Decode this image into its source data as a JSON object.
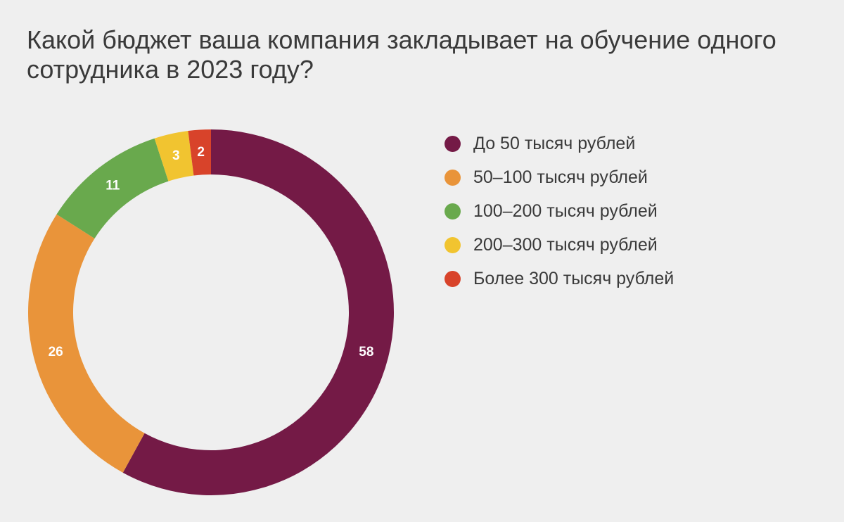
{
  "chart_data": {
    "type": "pie",
    "style": "donut",
    "title": "Какой бюджет ваша компания закладывает на обучение одного сотрудника в 2023 году?",
    "categories": [
      "До 50 тысяч рублей",
      "50–100 тысяч рублей",
      "100–200 тысяч рублей",
      "200–300 тысяч рублей",
      "Более 300 тысяч рублей"
    ],
    "values": [
      58,
      26,
      11,
      3,
      2
    ],
    "data_labels": [
      "58",
      "26",
      "11",
      "3",
      "2"
    ],
    "colors": [
      "#741a46",
      "#e9943a",
      "#69a94d",
      "#f1c430",
      "#d8432a"
    ],
    "legend_position": "right"
  }
}
